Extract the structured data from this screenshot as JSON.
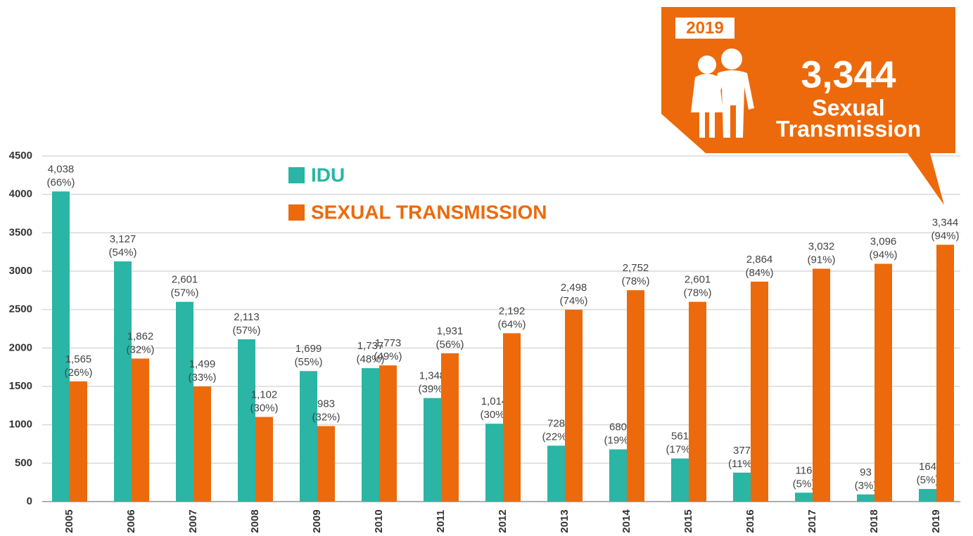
{
  "chart_data": {
    "type": "bar",
    "categories": [
      "2005",
      "2006",
      "2007",
      "2008",
      "2009",
      "2010",
      "2011",
      "2012",
      "2013",
      "2014",
      "2015",
      "2016",
      "2017",
      "2018",
      "2019"
    ],
    "series": [
      {
        "name": "IDU",
        "color": "#2ab5a5",
        "values": [
          4038,
          3127,
          2601,
          2113,
          1699,
          1737,
          1348,
          1014,
          728,
          680,
          561,
          377,
          116,
          93,
          164
        ],
        "value_labels": [
          "4,038",
          "3,127",
          "2,601",
          "2,113",
          "1,699",
          "1,737",
          "1,348",
          "1,014",
          "728",
          "680",
          "561",
          "377",
          "116",
          "93",
          "164"
        ],
        "share_labels": [
          "(66%)",
          "(54%)",
          "(57%)",
          "(57%)",
          "(55%)",
          "(48%)",
          "(39%)",
          "(30%)",
          "(22%)",
          "(19%)",
          "(17%)",
          "(11%)",
          "(5%)",
          "(3%)",
          "(5%)"
        ]
      },
      {
        "name": "SEXUAL TRANSMISSION",
        "color": "#ec6a0c",
        "values": [
          1565,
          1862,
          1499,
          1102,
          983,
          1773,
          1931,
          2192,
          2498,
          2752,
          2601,
          2864,
          3032,
          3096,
          3344
        ],
        "value_labels": [
          "1,565",
          "1,862",
          "1,499",
          "1,102",
          "983",
          "1,773",
          "1,931",
          "2,192",
          "2,498",
          "2,752",
          "2,601",
          "2,864",
          "3,032",
          "3,096",
          "3,344"
        ],
        "share_labels": [
          "(26%)",
          "(32%)",
          "(33%)",
          "(30%)",
          "(32%)",
          "(49%)",
          "(56%)",
          "(64%)",
          "(74%)",
          "(78%)",
          "(78%)",
          "(84%)",
          "(91%)",
          "(94%)",
          "(94%)"
        ]
      }
    ],
    "ylim": [
      0,
      4500
    ],
    "yticks": [
      0,
      500,
      1000,
      1500,
      2000,
      2500,
      3000,
      3500,
      4000,
      4500
    ],
    "grid": true,
    "callout": {
      "year": "2019",
      "value": "3,344",
      "lines": [
        "Sexual",
        "Transmission"
      ]
    }
  }
}
